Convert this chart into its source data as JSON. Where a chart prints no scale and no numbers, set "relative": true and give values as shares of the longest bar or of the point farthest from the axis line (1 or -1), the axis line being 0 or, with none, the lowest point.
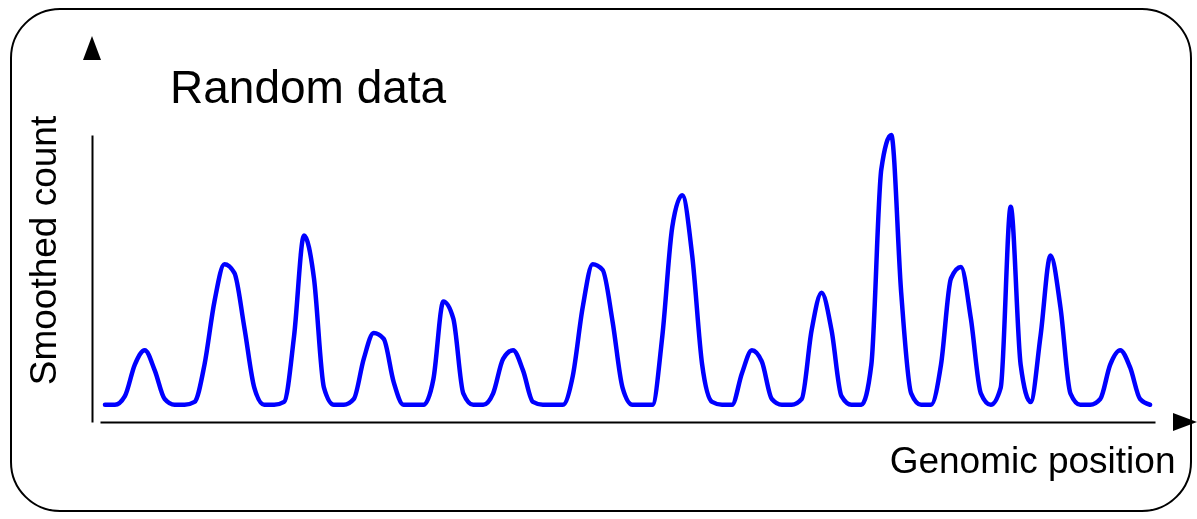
{
  "chart_data": {
    "type": "line",
    "relative": true,
    "title": "Random data",
    "xlabel": "Genomic position",
    "ylabel": "Smoothed count",
    "categories": [
      null,
      null,
      null,
      null,
      null,
      null,
      null,
      null,
      null,
      null,
      null,
      null,
      null,
      null,
      null,
      null,
      null,
      null,
      null,
      null,
      null,
      null,
      null,
      null,
      null,
      null,
      null,
      null,
      null,
      null,
      null,
      null,
      null,
      null,
      null,
      null,
      null,
      null,
      null,
      null,
      null,
      null,
      null,
      null,
      null,
      null,
      null,
      null,
      null,
      null,
      null,
      null,
      null,
      null,
      null,
      null,
      null,
      null,
      null,
      null,
      null,
      null,
      null,
      null,
      null,
      null,
      null,
      null,
      null,
      null,
      null,
      null,
      null,
      null,
      null,
      null,
      null,
      null,
      null,
      null,
      null,
      null,
      null,
      null,
      null,
      null,
      null,
      null,
      null,
      null,
      null,
      null,
      null,
      null,
      null,
      null,
      null,
      null,
      null,
      null,
      null,
      null,
      null,
      null,
      null,
      null
    ],
    "series": [
      {
        "color": "#0000ff",
        "values": [
          0.06,
          0.06,
          0.09,
          0.2,
          0.25,
          0.18,
          0.08,
          0.06,
          0.06,
          0.07,
          0.2,
          0.42,
          0.55,
          0.52,
          0.33,
          0.12,
          0.06,
          0.06,
          0.07,
          0.3,
          0.65,
          0.5,
          0.12,
          0.06,
          0.06,
          0.08,
          0.22,
          0.31,
          0.29,
          0.14,
          0.06,
          0.06,
          0.06,
          0.15,
          0.42,
          0.36,
          0.1,
          0.06,
          0.06,
          0.1,
          0.22,
          0.25,
          0.18,
          0.07,
          0.06,
          0.06,
          0.06,
          0.16,
          0.4,
          0.55,
          0.53,
          0.35,
          0.12,
          0.06,
          0.06,
          0.06,
          0.3,
          0.68,
          0.79,
          0.58,
          0.2,
          0.07,
          0.06,
          0.06,
          0.17,
          0.25,
          0.21,
          0.08,
          0.06,
          0.06,
          0.08,
          0.32,
          0.45,
          0.32,
          0.09,
          0.06,
          0.06,
          0.2,
          0.88,
          1,
          0.45,
          0.1,
          0.06,
          0.06,
          0.2,
          0.5,
          0.54,
          0.36,
          0.1,
          0.06,
          0.12,
          0.75,
          0.2,
          0.07,
          0.3,
          0.58,
          0.4,
          0.1,
          0.06,
          0.06,
          0.08,
          0.2,
          0.25,
          0.19,
          0.08,
          0.06
        ]
      }
    ]
  }
}
